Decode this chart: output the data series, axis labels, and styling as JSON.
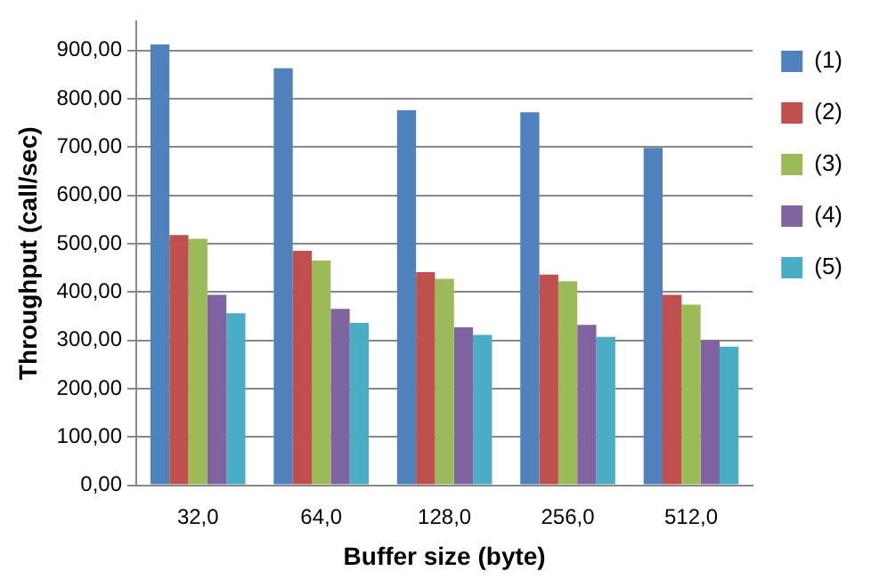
{
  "chart_data": {
    "type": "bar",
    "xlabel": "Buffer size (byte)",
    "ylabel": "Throughput (call/sec)",
    "categories": [
      "32,0",
      "64,0",
      "128,0",
      "256,0",
      "512,0"
    ],
    "series": [
      {
        "name": "(1)",
        "color": "#4f81bd",
        "values": [
          912,
          863,
          776,
          772,
          698
        ]
      },
      {
        "name": "(2)",
        "color": "#c0504d",
        "values": [
          518,
          485,
          441,
          436,
          394
        ]
      },
      {
        "name": "(3)",
        "color": "#9bbb59",
        "values": [
          510,
          465,
          427,
          422,
          374
        ]
      },
      {
        "name": "(4)",
        "color": "#8064a2",
        "values": [
          394,
          365,
          327,
          332,
          300
        ]
      },
      {
        "name": "(5)",
        "color": "#4bacc6",
        "values": [
          356,
          336,
          311,
          307,
          287
        ]
      }
    ],
    "ylim": [
      0,
      960
    ],
    "yticks": [
      {
        "value": 0,
        "label": "0,00"
      },
      {
        "value": 100,
        "label": "100,00"
      },
      {
        "value": 200,
        "label": "200,00"
      },
      {
        "value": 300,
        "label": "300,00"
      },
      {
        "value": 400,
        "label": "400,00"
      },
      {
        "value": 500,
        "label": "500,00"
      },
      {
        "value": 600,
        "label": "600,00"
      },
      {
        "value": 700,
        "label": "700,00"
      },
      {
        "value": 800,
        "label": "800,00"
      },
      {
        "value": 900,
        "label": "900,00"
      }
    ],
    "grid": "y",
    "legend": "right"
  }
}
